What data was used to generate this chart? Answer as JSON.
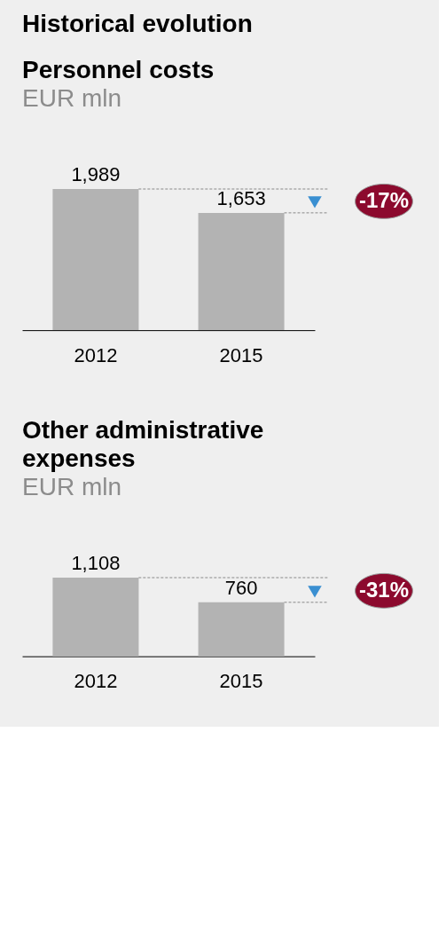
{
  "chart_data": [
    {
      "type": "bar",
      "title": "Personnel costs",
      "subtitle": "EUR mln",
      "categories": [
        "2012",
        "2015"
      ],
      "values": [
        1989,
        1653
      ],
      "color": "#b3b3b3",
      "value_labels": [
        "1,989",
        "1,653"
      ],
      "ref_lines": [
        {
          "axis": "y",
          "value": 1989,
          "color": "#888888",
          "line_style": "dashed"
        },
        {
          "axis": "y",
          "value": 1653,
          "color": "#888888",
          "line_style": "dashed"
        }
      ],
      "annotations": [
        "Historical evolution",
        "-17%"
      ]
    },
    {
      "type": "bar",
      "title": "Other administrative expenses",
      "subtitle": "EUR mln",
      "categories": [
        "2012",
        "2015"
      ],
      "values": [
        1108,
        760
      ],
      "color": "#b3b3b3",
      "value_labels": [
        "1,108",
        "760"
      ],
      "ref_lines": [
        {
          "axis": "y",
          "value": 1108,
          "color": "#888888",
          "line_style": "dashed"
        },
        {
          "axis": "y",
          "value": 760,
          "color": "#888888",
          "line_style": "dashed"
        }
      ],
      "annotations": [
        "-31%"
      ]
    }
  ]
}
